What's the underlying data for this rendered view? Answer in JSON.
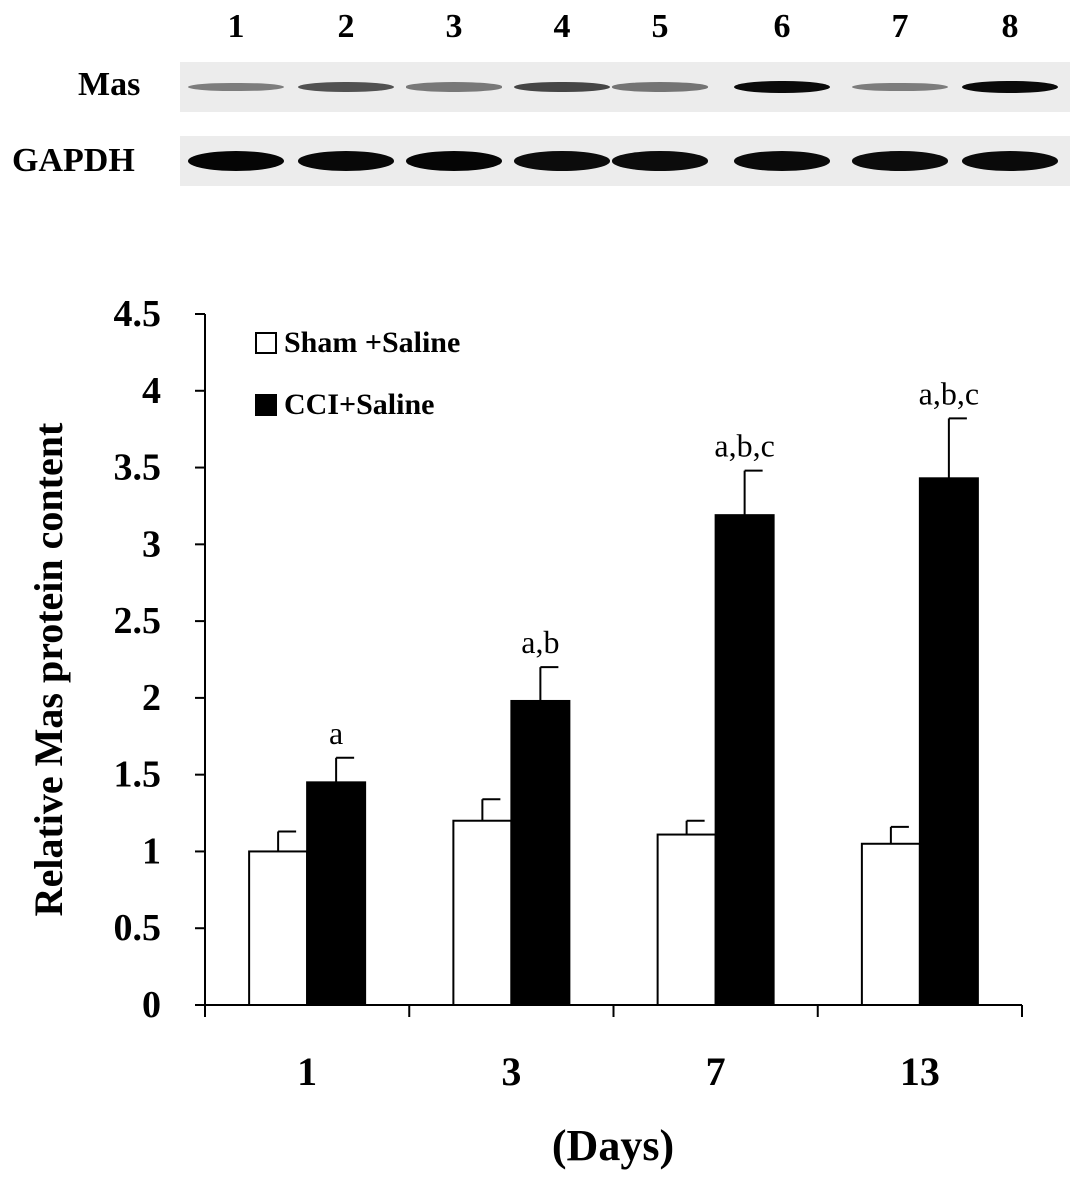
{
  "blot": {
    "lanes": [
      "1",
      "2",
      "3",
      "4",
      "5",
      "6",
      "7",
      "8"
    ],
    "rows": [
      {
        "label": "Mas",
        "intensities": [
          0.3,
          0.55,
          0.32,
          0.62,
          0.35,
          0.95,
          0.3,
          0.95
        ]
      },
      {
        "label": "GAPDH",
        "intensities": [
          0.98,
          0.96,
          0.97,
          0.94,
          0.93,
          0.95,
          0.93,
          0.95
        ]
      }
    ]
  },
  "chart_data": {
    "type": "bar",
    "categories": [
      "1",
      "3",
      "7",
      "13"
    ],
    "series": [
      {
        "name": "Sham +Saline",
        "values": [
          1.0,
          1.2,
          1.11,
          1.05
        ],
        "errors": [
          0.13,
          0.14,
          0.09,
          0.11
        ],
        "fill": "#ffffff"
      },
      {
        "name": "CCI+Saline",
        "values": [
          1.45,
          1.98,
          3.19,
          3.43
        ],
        "errors": [
          0.16,
          0.22,
          0.29,
          0.39
        ],
        "fill": "#000000"
      }
    ],
    "annotations": [
      "a",
      "a,b",
      "a,b,c",
      "a,b,c"
    ],
    "ylim": [
      0,
      4.5
    ],
    "yticks": [
      "0",
      "0.5",
      "1",
      "1.5",
      "2",
      "2.5",
      "3",
      "3.5",
      "4",
      "4.5"
    ],
    "xlabel": "(Days)",
    "ylabel": "Relative Mas protein content",
    "legend_position": "top-left"
  }
}
